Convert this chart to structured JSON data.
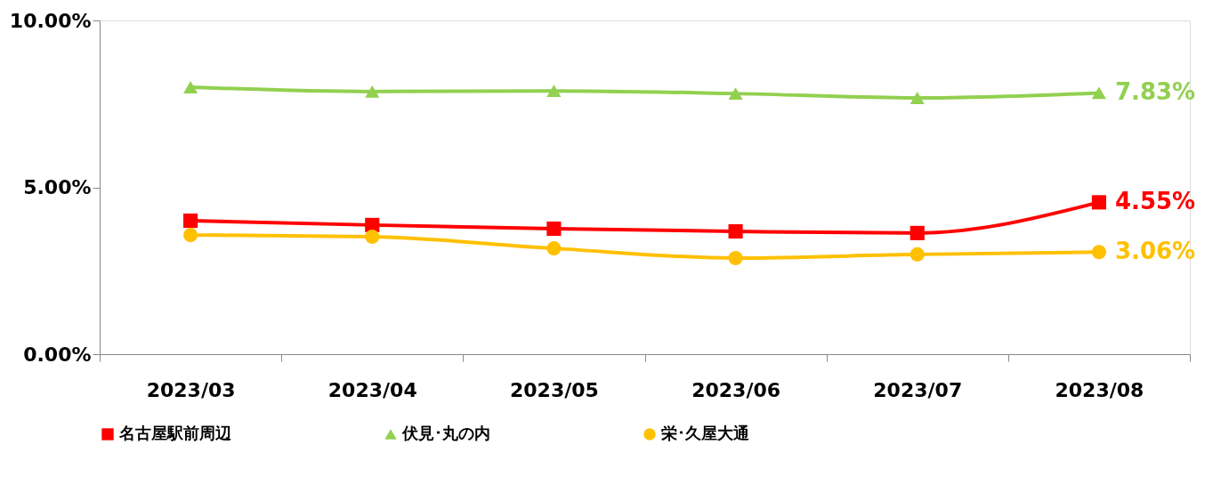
{
  "chart_data": {
    "type": "line",
    "categories": [
      "2023/03",
      "2023/04",
      "2023/05",
      "2023/06",
      "2023/07",
      "2023/08"
    ],
    "ylim": [
      0,
      10
    ],
    "yticks": [
      {
        "value": 0,
        "label": "0.00%"
      },
      {
        "value": 5,
        "label": "5.00%"
      },
      {
        "value": 10,
        "label": "10.00%"
      }
    ],
    "grid": false,
    "legend": "bottom",
    "series": [
      {
        "name": "名古屋駅前周辺",
        "color": "#ff0000",
        "marker": "square",
        "values": [
          4.0,
          3.87,
          3.76,
          3.68,
          3.63,
          4.55
        ],
        "value_labels": [
          null,
          null,
          null,
          null,
          null,
          "4.55%"
        ]
      },
      {
        "name": "伏見･丸の内",
        "color": "#92d050",
        "marker": "triangle",
        "values": [
          8.0,
          7.87,
          7.89,
          7.81,
          7.68,
          7.83
        ],
        "value_labels": [
          null,
          null,
          null,
          null,
          null,
          "7.83%"
        ]
      },
      {
        "name": "栄･久屋大通",
        "color": "#ffc000",
        "marker": "circle",
        "values": [
          3.57,
          3.52,
          3.17,
          2.88,
          2.99,
          3.06
        ],
        "value_labels": [
          null,
          null,
          null,
          null,
          null,
          "3.06%"
        ]
      }
    ]
  }
}
